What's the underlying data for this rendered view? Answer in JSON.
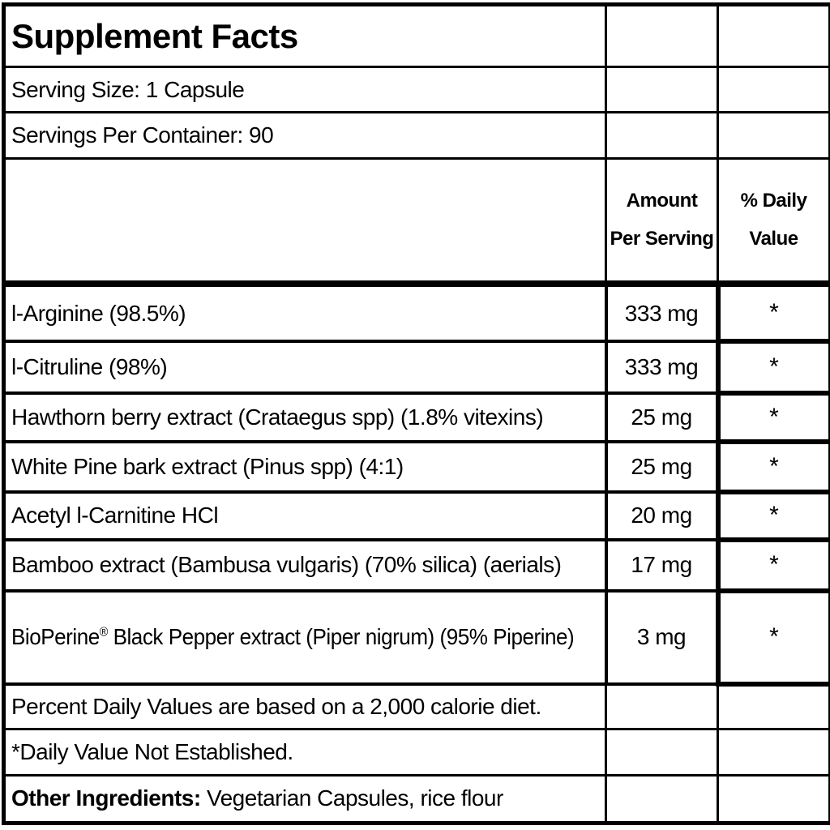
{
  "title": "Supplement Facts",
  "serving_size": "Serving Size: 1 Capsule",
  "servings_per_container": "Servings Per Container: 90",
  "columns": {
    "amount_header_line1": "Amount",
    "amount_header_line2": "Per Serving",
    "dv_header_line1": "% Daily",
    "dv_header_line2": "Value"
  },
  "ingredients": [
    {
      "name": "l-Arginine (98.5%)",
      "amount": "333 mg",
      "daily_value": "*"
    },
    {
      "name": "l-Citruline (98%)",
      "amount": "333 mg",
      "daily_value": "*"
    },
    {
      "name": "Hawthorn berry extract (Crataegus spp) (1.8% vitexins)",
      "amount": "25 mg",
      "daily_value": "*"
    },
    {
      "name": "White Pine bark extract (Pinus spp) (4:1)",
      "amount": "25 mg",
      "daily_value": "*"
    },
    {
      "name": "Acetyl l-Carnitine HCl",
      "amount": "20 mg",
      "daily_value": "*"
    },
    {
      "name": "Bamboo extract (Bambusa vulgaris) (70% silica) (aerials)",
      "amount": "17 mg",
      "daily_value": "*"
    },
    {
      "name_pre": "BioPerine",
      "name_sup": "®",
      "name_post": " Black Pepper extract (Piper nigrum) (95% Piperine)",
      "amount": "3 mg",
      "daily_value": "*"
    }
  ],
  "footnotes": {
    "percent_dv": "Percent Daily Values are based on a 2,000 calorie diet.",
    "not_established": "*Daily Value Not Established.",
    "other_ingredients_label": "Other Ingredients:",
    "other_ingredients_value": " Vegetarian Capsules, rice flour"
  },
  "colors": {
    "border": "#000000",
    "background": "#ffffff",
    "text": "#000000"
  }
}
